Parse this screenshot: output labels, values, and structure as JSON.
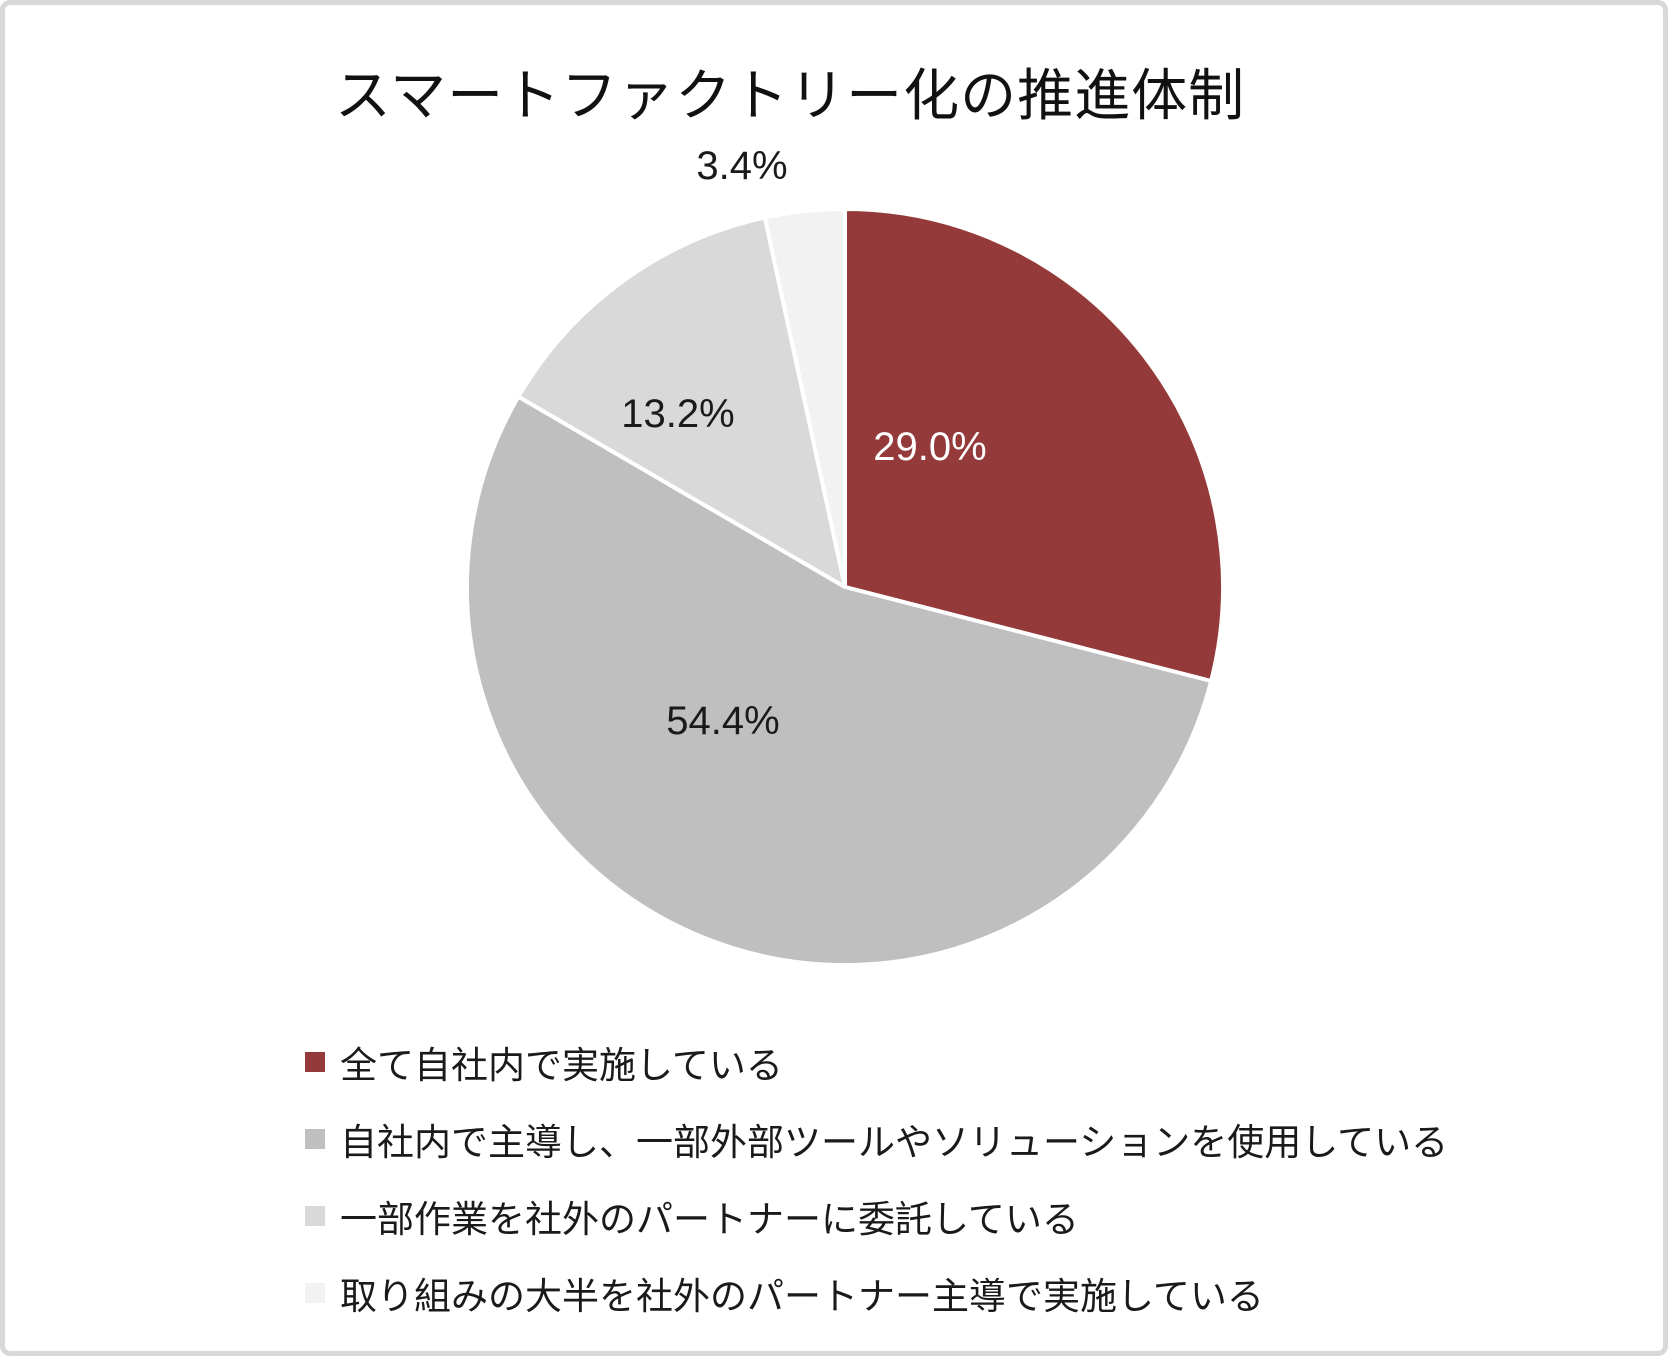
{
  "title": "スマートファクトリー化の推進体制",
  "chart_data": {
    "type": "pie",
    "title": "スマートファクトリー化の推進体制",
    "start_angle_deg": 0,
    "direction": "clockwise",
    "legend_position": "bottom-left",
    "total": 100,
    "slices": [
      {
        "label": "全て自社内で実施している",
        "value": 29.0,
        "display": "29.0%",
        "color": "#943A3A",
        "label_color": "#FFFFFF",
        "label_inside": true
      },
      {
        "label": "自社内で主導し、一部外部ツールやソリューションを使用している",
        "value": 54.4,
        "display": "54.4%",
        "color": "#BFBFBF",
        "label_color": "#1A1A1A",
        "label_inside": true
      },
      {
        "label": "一部作業を社外のパートナーに委託している",
        "value": 13.2,
        "display": "13.2%",
        "color": "#D9D9D9",
        "label_color": "#1A1A1A",
        "label_inside": true
      },
      {
        "label": "取り組みの大半を社外のパートナー主導で実施している",
        "value": 3.4,
        "display": "3.4%",
        "color": "#F2F2F2",
        "label_color": "#1A1A1A",
        "label_inside": false
      }
    ]
  }
}
